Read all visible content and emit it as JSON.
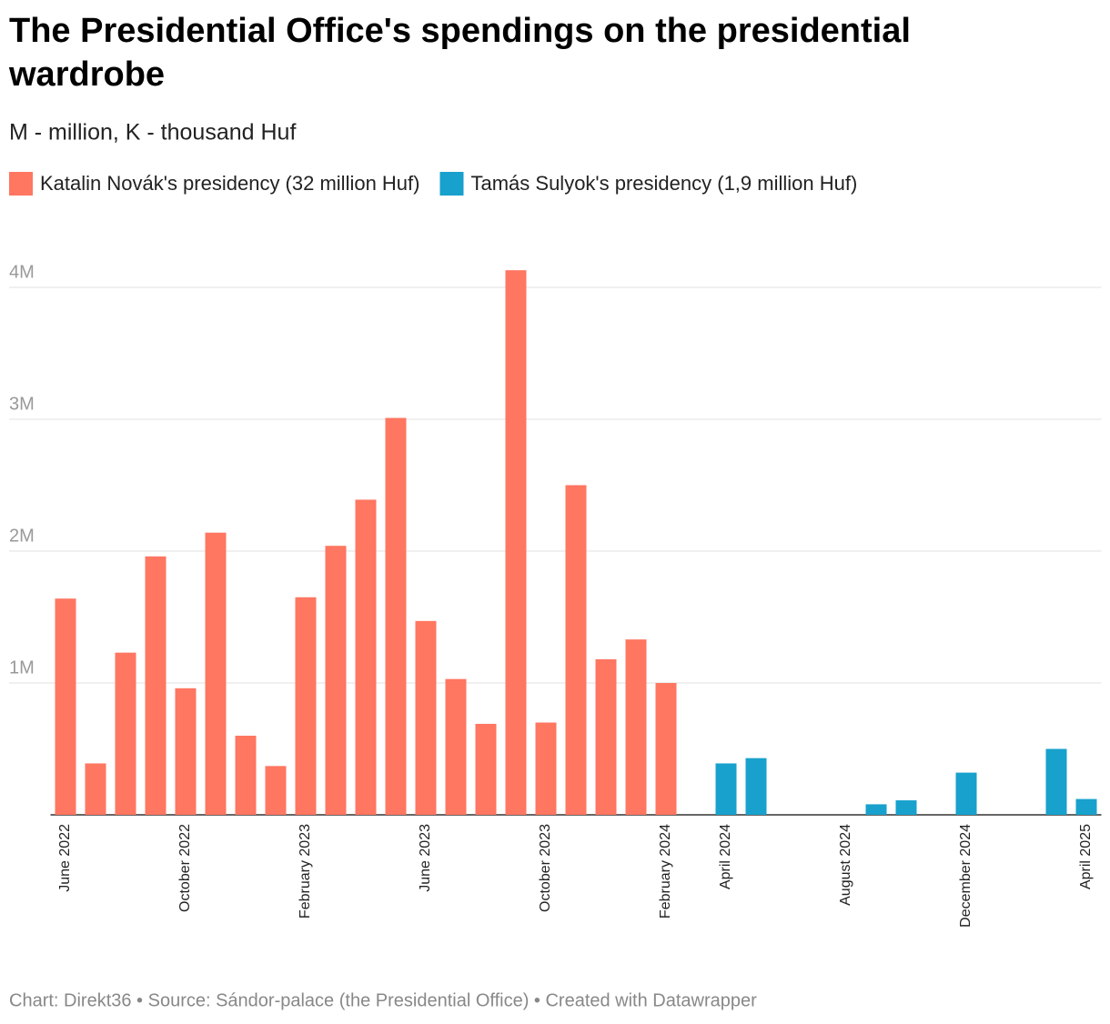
{
  "chart_data": {
    "type": "bar",
    "title": "The Presidential Office's spendings on the presidential wardrobe",
    "subtitle": "M - million, K - thousand Huf",
    "footer": "Chart: Direkt36 • Source: Sándor-palace (the Presidential Office) • Created with Datawrapper",
    "categories": [
      "June 2022",
      null,
      null,
      null,
      "October 2022",
      null,
      null,
      null,
      "February 2023",
      null,
      null,
      null,
      "June 2023",
      null,
      null,
      null,
      "October 2023",
      null,
      null,
      null,
      "February 2024",
      null,
      "April 2024",
      null,
      null,
      null,
      "August 2024",
      null,
      null,
      null,
      "December 2024",
      null,
      null,
      null,
      "April 2025"
    ],
    "series": [
      {
        "name": "Katalin Novák's presidency (32 million Huf)",
        "color": "#ff7661",
        "values": [
          1640000,
          390000,
          1230000,
          1960000,
          960000,
          2140000,
          600000,
          370000,
          1650000,
          2040000,
          2390000,
          3010000,
          1470000,
          1030000,
          690000,
          4130000,
          700000,
          2500000,
          1180000,
          1330000,
          1000000,
          null,
          null,
          null,
          null,
          null,
          null,
          null,
          null,
          null,
          null,
          null,
          null,
          null,
          null
        ]
      },
      {
        "name": "Tamás Sulyok's presidency (1,9 million Huf)",
        "color": "#18a1cd",
        "values": [
          null,
          null,
          null,
          null,
          null,
          null,
          null,
          null,
          null,
          null,
          null,
          null,
          null,
          null,
          null,
          null,
          null,
          null,
          null,
          null,
          null,
          null,
          390000,
          430000,
          null,
          null,
          null,
          80000,
          110000,
          null,
          320000,
          null,
          null,
          500000,
          120000
        ]
      }
    ],
    "ylim": [
      0,
      4200000
    ],
    "yticks": [
      {
        "value": 1000000,
        "label": "1M"
      },
      {
        "value": 2000000,
        "label": "2M"
      },
      {
        "value": 3000000,
        "label": "3M"
      },
      {
        "value": 4000000,
        "label": "4M"
      }
    ],
    "grid": true
  }
}
